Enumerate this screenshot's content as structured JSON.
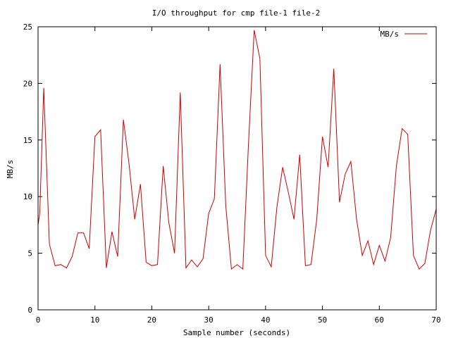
{
  "chart_data": {
    "type": "line",
    "title": "I/O throughput for cmp file-1 file-2",
    "xlabel": "Sample number (seconds)",
    "ylabel": "MB/s",
    "xlim": [
      0,
      70
    ],
    "ylim": [
      0,
      25
    ],
    "xticks": [
      0,
      10,
      20,
      30,
      40,
      50,
      60,
      70
    ],
    "yticks": [
      0,
      5,
      10,
      15,
      20,
      25
    ],
    "grid": false,
    "legend_position": "top-right",
    "series": [
      {
        "name": "MB/s",
        "color": "#cc0000",
        "x": [
          0,
          0.3,
          1,
          2,
          3,
          4,
          5,
          6,
          7,
          8,
          9,
          10,
          11,
          12,
          13,
          14,
          15,
          16,
          17,
          18,
          19,
          20,
          21,
          22,
          23,
          24,
          25,
          26,
          27,
          28,
          29,
          30,
          31,
          32,
          33,
          34,
          35,
          36,
          37,
          38,
          39,
          40,
          41,
          42,
          43,
          44,
          45,
          46,
          47,
          48,
          49,
          50,
          51,
          52,
          53,
          54,
          55,
          56,
          57,
          58,
          59,
          60,
          61,
          62,
          63,
          64,
          65,
          66,
          67,
          68,
          69,
          70
        ],
        "y": [
          7.5,
          8.5,
          19.6,
          5.8,
          3.9,
          4.0,
          3.7,
          4.7,
          6.8,
          6.8,
          5.4,
          15.3,
          15.9,
          3.7,
          6.9,
          4.7,
          16.8,
          12.9,
          8.0,
          11.1,
          4.2,
          3.9,
          4.0,
          12.7,
          7.7,
          5.0,
          19.2,
          3.7,
          4.4,
          3.8,
          4.5,
          8.5,
          9.8,
          21.7,
          9.2,
          3.6,
          4.0,
          3.6,
          14.6,
          24.7,
          22.2,
          4.8,
          3.8,
          9.1,
          12.6,
          10.4,
          8.0,
          13.7,
          3.9,
          4.0,
          8.0,
          15.3,
          12.6,
          21.3,
          9.5,
          12.0,
          13.1,
          8.0,
          4.8,
          6.1,
          4.0,
          5.7,
          4.3,
          6.4,
          12.7,
          16.0,
          15.5,
          4.8,
          3.6,
          4.1,
          7.0,
          8.9
        ]
      }
    ]
  }
}
